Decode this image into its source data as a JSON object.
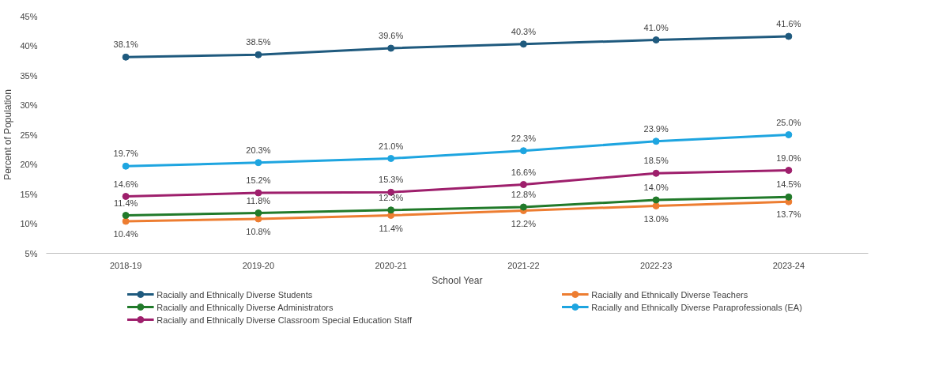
{
  "chart_data": {
    "type": "line",
    "xlabel": "School Year",
    "ylabel": "Percent of Population",
    "categories": [
      "2018-19",
      "2019-20",
      "2020-21",
      "2021-22",
      "2022-23",
      "2023-24"
    ],
    "series": [
      {
        "name": "Racially and Ethnically Diverse Students",
        "color": "#1f5a7e",
        "values": [
          38.1,
          38.5,
          39.6,
          40.3,
          41.0,
          41.6
        ],
        "value_labels": [
          "38.1%",
          "38.5%",
          "39.6%",
          "40.3%",
          "41.0%",
          "41.6%"
        ]
      },
      {
        "name": "Racially and Ethnically Diverse Teachers",
        "color": "#ed7d31",
        "values": [
          10.4,
          10.8,
          11.4,
          12.2,
          13.0,
          13.7
        ],
        "value_labels": [
          "10.4%",
          "10.8%",
          "11.4%",
          "12.2%",
          "13.0%",
          "13.7%"
        ]
      },
      {
        "name": "Racially and Ethnically Diverse Administrators",
        "color": "#217a2a",
        "values": [
          11.4,
          11.8,
          12.3,
          12.8,
          14.0,
          14.5
        ],
        "value_labels": [
          "11.4%",
          "11.8%",
          "12.3%",
          "12.8%",
          "14.0%",
          "14.5%"
        ]
      },
      {
        "name": "Racially and Ethnically Diverse Paraprofessionals (EA)",
        "color": "#1ea5e0",
        "values": [
          19.7,
          20.3,
          21.0,
          22.3,
          23.9,
          25.0
        ],
        "value_labels": [
          "19.7%",
          "20.3%",
          "21.0%",
          "22.3%",
          "23.9%",
          "25.0%"
        ]
      },
      {
        "name": "Racially and Ethnically Diverse Classroom Special Education Staff",
        "color": "#9e1f6c",
        "values": [
          14.6,
          15.2,
          15.3,
          16.6,
          18.5,
          19.0
        ],
        "value_labels": [
          "14.6%",
          "15.2%",
          "15.3%",
          "16.6%",
          "18.5%",
          "19.0%"
        ]
      }
    ],
    "ylim": [
      5,
      45
    ],
    "yticks": [
      {
        "value": 5,
        "label": "5%"
      },
      {
        "value": 10,
        "label": "10%"
      },
      {
        "value": 15,
        "label": "15%"
      },
      {
        "value": 20,
        "label": "20%"
      },
      {
        "value": 25,
        "label": "25%"
      },
      {
        "value": 30,
        "label": "30%"
      },
      {
        "value": 35,
        "label": "35%"
      },
      {
        "value": 40,
        "label": "40%"
      },
      {
        "value": 45,
        "label": "45%"
      }
    ],
    "grid": false,
    "legend": "bottom",
    "marker": "circle",
    "line_style": "solid"
  }
}
